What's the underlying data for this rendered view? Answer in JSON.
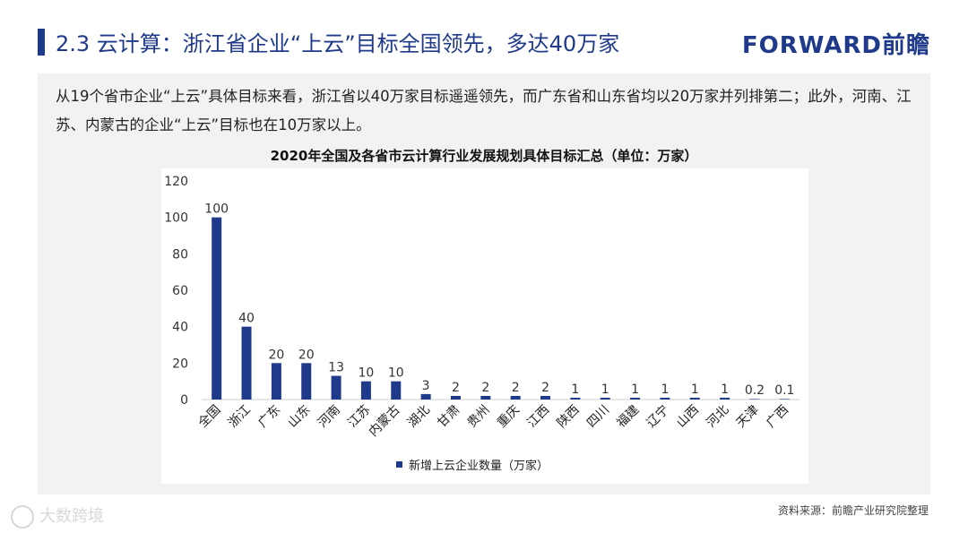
{
  "header": {
    "title": "2.3 云计算：浙江省企业“上云”目标全国领先，多达40万家",
    "brand": "FORWARD前瞻"
  },
  "intro": {
    "text": "从19个省市企业“上云”具体目标来看，浙江省以40万家目标遥遥领先，而广东省和山东省均以20万家并列排第二；此外，河南、江苏、内蒙古的企业“上云”目标也在10万家以上。"
  },
  "chart_data": {
    "type": "bar",
    "title": "2020年全国及各省市云计算行业发展规划具体目标汇总（单位：万家）",
    "categories": [
      "全国",
      "浙江",
      "广东",
      "山东",
      "河南",
      "江苏",
      "内蒙古",
      "湖北",
      "甘肃",
      "贵州",
      "重庆",
      "江西",
      "陕西",
      "四川",
      "福建",
      "辽宁",
      "山西",
      "河北",
      "天津",
      "广西"
    ],
    "series": [
      {
        "name": "新增上云企业数量（万家）",
        "values": [
          100,
          40,
          20,
          20,
          13,
          10,
          10,
          3,
          2,
          2,
          2,
          2,
          1,
          1,
          1,
          1,
          1,
          1,
          0.2,
          0.1
        ],
        "color": "#1f3a8a"
      }
    ],
    "ylim": [
      0,
      120
    ],
    "yticks": [
      0,
      20,
      40,
      60,
      80,
      100,
      120
    ],
    "xlabel": "",
    "ylabel": "",
    "grid": false,
    "legend": "bottom"
  },
  "footer": {
    "source": "资料来源：前瞻产业研究院整理",
    "watermark": "大数跨境"
  }
}
